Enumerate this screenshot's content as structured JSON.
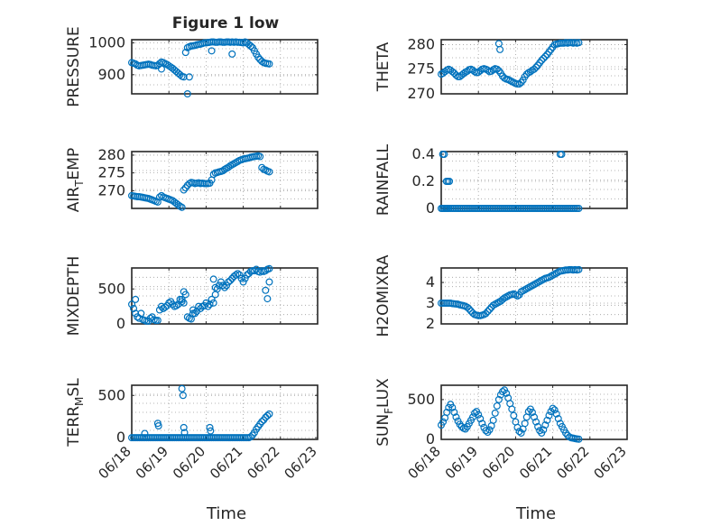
{
  "figure": {
    "title": "Figure 1 low",
    "x_tick_labels": [
      "06/18",
      "06/19",
      "06/20",
      "06/21",
      "06/22",
      "06/23"
    ],
    "x_label": "Time",
    "marker_color": "#0072BD",
    "grid_color": "#9e9e9e"
  },
  "chart_data": [
    {
      "type": "scatter",
      "ylabel": "PRESSURE",
      "xlim": [
        0,
        5
      ],
      "ylim": [
        840,
        1010
      ],
      "yticks": [
        900,
        1000
      ],
      "grid": true,
      "x": [
        0.0,
        0.05,
        0.1,
        0.15,
        0.2,
        0.25,
        0.3,
        0.35,
        0.4,
        0.45,
        0.5,
        0.55,
        0.6,
        0.65,
        0.7,
        0.75,
        0.8,
        0.85,
        0.9,
        0.95,
        1.0,
        1.05,
        1.1,
        1.15,
        1.2,
        1.25,
        1.3,
        1.35,
        1.4,
        1.45,
        1.5,
        1.55,
        1.6,
        1.65,
        1.7,
        1.75,
        1.8,
        1.85,
        1.9,
        1.95,
        2.0,
        2.05,
        2.1,
        2.15,
        2.2,
        2.25,
        2.3,
        2.35,
        2.4,
        2.45,
        2.5,
        2.55,
        2.6,
        2.65,
        2.7,
        2.75,
        2.8,
        2.85,
        2.9,
        2.95,
        3.0,
        3.05,
        3.1,
        3.15,
        3.2,
        3.25,
        3.3,
        3.35,
        3.4,
        3.45,
        3.5,
        3.55,
        3.6,
        3.65,
        3.7,
        1.5,
        1.55,
        2.15,
        2.7,
        3.2,
        0.8
      ],
      "y": [
        938,
        936,
        934,
        930,
        928,
        929,
        930,
        931,
        932,
        933,
        932,
        930,
        929,
        928,
        930,
        935,
        940,
        938,
        935,
        932,
        928,
        924,
        920,
        915,
        910,
        905,
        900,
        895,
        893,
        970,
        985,
        988,
        990,
        991,
        992,
        994,
        995,
        996,
        998,
        1000,
        1000,
        1001,
        1002,
        1003,
        1003,
        1002,
        1002,
        1003,
        1003,
        1002,
        1002,
        1003,
        1003,
        1002,
        1003,
        1002,
        1003,
        1002,
        1002,
        1001,
        1000,
        1003,
        1000,
        995,
        990,
        985,
        975,
        965,
        955,
        948,
        942,
        938,
        936,
        935,
        934,
        840,
        893,
        975,
        965,
        990,
        918
      ]
    },
    {
      "type": "scatter",
      "ylabel": "THETA",
      "xlim": [
        0,
        5
      ],
      "ylim": [
        270,
        281
      ],
      "yticks": [
        270,
        275,
        280
      ],
      "grid": true,
      "x": [
        0.0,
        0.05,
        0.1,
        0.15,
        0.2,
        0.25,
        0.3,
        0.35,
        0.4,
        0.45,
        0.5,
        0.55,
        0.6,
        0.65,
        0.7,
        0.75,
        0.8,
        0.85,
        0.9,
        0.95,
        1.0,
        1.05,
        1.1,
        1.15,
        1.2,
        1.25,
        1.3,
        1.35,
        1.4,
        1.45,
        1.5,
        1.55,
        1.6,
        1.65,
        1.7,
        1.75,
        1.8,
        1.85,
        1.9,
        1.95,
        2.0,
        2.05,
        2.1,
        2.15,
        2.2,
        2.25,
        2.3,
        2.35,
        2.4,
        2.45,
        2.5,
        2.55,
        2.6,
        2.65,
        2.7,
        2.75,
        2.8,
        2.85,
        2.9,
        2.95,
        3.0,
        3.05,
        3.1,
        3.15,
        3.2,
        3.25,
        3.3,
        3.35,
        3.4,
        3.45,
        3.5,
        3.55,
        3.6,
        3.65,
        3.7,
        1.55,
        1.58
      ],
      "y": [
        274.0,
        274.2,
        274.5,
        274.8,
        275.0,
        274.8,
        274.5,
        274.2,
        273.8,
        273.5,
        273.5,
        273.8,
        274.1,
        274.4,
        274.6,
        274.9,
        275.0,
        274.8,
        274.5,
        274.3,
        274.4,
        274.7,
        275.0,
        275.1,
        275.0,
        274.8,
        274.5,
        274.6,
        274.9,
        275.1,
        275.0,
        274.7,
        274.2,
        273.6,
        273.2,
        273.0,
        272.9,
        272.7,
        272.5,
        272.3,
        272.1,
        272.0,
        272.0,
        272.3,
        272.8,
        273.5,
        274.0,
        274.3,
        274.5,
        274.8,
        275.0,
        275.4,
        275.8,
        276.3,
        276.8,
        277.2,
        277.6,
        278.0,
        278.5,
        279.0,
        279.5,
        280.0,
        280.1,
        280.2,
        280.3,
        280.3,
        280.3,
        280.4,
        280.3,
        280.4,
        280.4,
        280.3,
        280.4,
        280.3,
        280.4,
        280.2,
        279.0
      ]
    },
    {
      "type": "scatter",
      "ylabel": "AIR_TEMP",
      "xlim": [
        0,
        5
      ],
      "ylim": [
        265,
        281
      ],
      "yticks": [
        270,
        275,
        280
      ],
      "grid": true,
      "x": [
        0.0,
        0.05,
        0.1,
        0.15,
        0.2,
        0.25,
        0.3,
        0.35,
        0.4,
        0.45,
        0.5,
        0.55,
        0.6,
        0.65,
        0.7,
        0.75,
        0.8,
        0.85,
        0.9,
        0.95,
        1.0,
        1.05,
        1.1,
        1.15,
        1.2,
        1.25,
        1.3,
        1.35,
        1.4,
        1.45,
        1.5,
        1.55,
        1.6,
        1.65,
        1.7,
        1.75,
        1.8,
        1.85,
        1.9,
        1.95,
        2.0,
        2.05,
        2.1,
        2.15,
        2.2,
        2.25,
        2.3,
        2.35,
        2.4,
        2.45,
        2.5,
        2.55,
        2.6,
        2.65,
        2.7,
        2.75,
        2.8,
        2.85,
        2.9,
        2.95,
        3.0,
        3.05,
        3.1,
        3.15,
        3.2,
        3.25,
        3.3,
        3.35,
        3.4,
        3.45,
        3.5,
        3.55,
        3.6,
        3.65,
        3.7
      ],
      "y": [
        268.6,
        268.5,
        268.4,
        268.3,
        268.3,
        268.2,
        268.1,
        268.0,
        267.9,
        267.8,
        267.6,
        267.4,
        267.2,
        267.0,
        266.8,
        268.2,
        268.6,
        268.2,
        268.0,
        267.8,
        267.6,
        267.4,
        267.2,
        266.8,
        266.4,
        266.0,
        265.6,
        265.3,
        270.2,
        270.8,
        271.5,
        272.0,
        272.3,
        272.2,
        272.0,
        272.1,
        272.2,
        272.0,
        272.1,
        272.0,
        272.0,
        272.0,
        272.1,
        273.0,
        274.6,
        275.0,
        275.1,
        275.3,
        275.4,
        275.6,
        276.0,
        276.3,
        276.6,
        277.0,
        277.3,
        277.6,
        277.9,
        278.2,
        278.5,
        278.7,
        278.9,
        279.0,
        279.1,
        279.2,
        279.4,
        279.5,
        279.6,
        279.7,
        279.8,
        279.6,
        276.5,
        276.0,
        275.8,
        275.5,
        275.3
      ]
    },
    {
      "type": "scatter",
      "ylabel": "RAINFALL",
      "xlim": [
        0,
        5
      ],
      "ylim": [
        0,
        0.42
      ],
      "yticks": [
        0,
        0.2,
        0.4
      ],
      "grid": true,
      "x": [
        0.0,
        0.04,
        0.08,
        0.12,
        0.16,
        0.2,
        0.25,
        0.3,
        0.35,
        0.4,
        0.45,
        0.5,
        0.55,
        0.6,
        0.65,
        0.7,
        0.75,
        0.8,
        0.85,
        0.9,
        0.95,
        1.0,
        1.05,
        1.1,
        1.15,
        1.2,
        1.25,
        1.3,
        1.35,
        1.4,
        1.45,
        1.5,
        1.55,
        1.6,
        1.65,
        1.7,
        1.75,
        1.8,
        1.85,
        1.9,
        1.95,
        2.0,
        2.05,
        2.1,
        2.15,
        2.2,
        2.25,
        2.3,
        2.35,
        2.4,
        2.45,
        2.5,
        2.55,
        2.6,
        2.65,
        2.7,
        2.75,
        2.8,
        2.85,
        2.9,
        2.95,
        3.0,
        3.05,
        3.1,
        3.15,
        3.2,
        3.25,
        3.3,
        3.35,
        3.4,
        3.45,
        3.5,
        3.55,
        3.6,
        3.65,
        3.7,
        0.04,
        0.08,
        0.14,
        0.18,
        0.22,
        3.2,
        3.24
      ],
      "y": [
        0,
        0,
        0,
        0,
        0,
        0,
        0,
        0,
        0,
        0,
        0,
        0,
        0,
        0,
        0,
        0,
        0,
        0,
        0,
        0,
        0,
        0,
        0,
        0,
        0,
        0,
        0,
        0,
        0,
        0,
        0,
        0,
        0,
        0,
        0,
        0,
        0,
        0,
        0,
        0,
        0,
        0,
        0,
        0,
        0,
        0,
        0,
        0,
        0,
        0,
        0,
        0,
        0,
        0,
        0,
        0,
        0,
        0,
        0,
        0,
        0,
        0,
        0,
        0,
        0,
        0,
        0,
        0,
        0,
        0,
        0,
        0,
        0,
        0,
        0,
        0,
        0.4,
        0.4,
        0.2,
        0.2,
        0.2,
        0.4,
        0.4
      ]
    },
    {
      "type": "scatter",
      "ylabel": "MIXDEPTH",
      "xlim": [
        0,
        5
      ],
      "ylim": [
        0,
        800
      ],
      "yticks": [
        0,
        500
      ],
      "grid": true,
      "x": [
        0.0,
        0.05,
        0.1,
        0.15,
        0.2,
        0.25,
        0.3,
        0.35,
        0.4,
        0.45,
        0.5,
        0.55,
        0.6,
        0.65,
        0.7,
        0.75,
        0.8,
        0.85,
        0.9,
        0.95,
        1.0,
        1.05,
        1.1,
        1.15,
        1.2,
        1.25,
        1.3,
        1.35,
        1.4,
        1.45,
        1.5,
        1.55,
        1.6,
        1.65,
        1.7,
        1.75,
        1.8,
        1.85,
        1.9,
        1.95,
        2.0,
        2.05,
        2.1,
        2.15,
        2.2,
        2.25,
        2.3,
        2.35,
        2.4,
        2.45,
        2.5,
        2.55,
        2.6,
        2.65,
        2.7,
        2.75,
        2.8,
        2.85,
        2.9,
        2.95,
        3.0,
        3.05,
        3.1,
        3.15,
        3.2,
        3.25,
        3.3,
        3.35,
        3.4,
        3.45,
        3.5,
        3.55,
        3.6,
        3.65,
        3.7,
        1.35,
        1.4,
        2.2,
        2.25,
        3.6,
        3.65,
        3.7,
        0.1,
        1.65
      ],
      "y": [
        280,
        220,
        150,
        100,
        80,
        150,
        60,
        50,
        40,
        40,
        80,
        100,
        60,
        50,
        50,
        200,
        250,
        220,
        240,
        260,
        300,
        320,
        280,
        250,
        260,
        280,
        350,
        320,
        300,
        420,
        100,
        80,
        70,
        200,
        150,
        180,
        250,
        220,
        250,
        260,
        300,
        250,
        280,
        350,
        300,
        420,
        500,
        550,
        600,
        550,
        520,
        550,
        600,
        620,
        650,
        680,
        700,
        720,
        700,
        650,
        600,
        650,
        700,
        720,
        750,
        760,
        760,
        780,
        750,
        740,
        760,
        750,
        760,
        780,
        790,
        350,
        460,
        640,
        520,
        480,
        360,
        600,
        350,
        150
      ]
    },
    {
      "type": "scatter",
      "ylabel": "H2OMIXRA",
      "xlim": [
        0,
        5
      ],
      "ylim": [
        2,
        4.7
      ],
      "yticks": [
        2,
        3,
        4
      ],
      "grid": true,
      "x": [
        0.0,
        0.05,
        0.1,
        0.15,
        0.2,
        0.25,
        0.3,
        0.35,
        0.4,
        0.45,
        0.5,
        0.55,
        0.6,
        0.65,
        0.7,
        0.75,
        0.8,
        0.85,
        0.9,
        0.95,
        1.0,
        1.05,
        1.1,
        1.15,
        1.2,
        1.25,
        1.3,
        1.35,
        1.4,
        1.45,
        1.5,
        1.55,
        1.6,
        1.65,
        1.7,
        1.75,
        1.8,
        1.85,
        1.9,
        1.95,
        2.0,
        2.05,
        2.1,
        2.15,
        2.2,
        2.25,
        2.3,
        2.35,
        2.4,
        2.45,
        2.5,
        2.55,
        2.6,
        2.65,
        2.7,
        2.75,
        2.8,
        2.85,
        2.9,
        2.95,
        3.0,
        3.05,
        3.1,
        3.15,
        3.2,
        3.25,
        3.3,
        3.35,
        3.4,
        3.45,
        3.5,
        3.55,
        3.6,
        3.65,
        3.7
      ],
      "y": [
        3.0,
        3.0,
        3.0,
        3.0,
        3.0,
        3.0,
        2.98,
        2.97,
        2.96,
        2.95,
        2.92,
        2.9,
        2.88,
        2.85,
        2.8,
        2.72,
        2.62,
        2.52,
        2.45,
        2.42,
        2.4,
        2.4,
        2.42,
        2.45,
        2.5,
        2.6,
        2.7,
        2.8,
        2.9,
        2.95,
        3.0,
        3.05,
        3.1,
        3.18,
        3.25,
        3.3,
        3.35,
        3.4,
        3.42,
        3.45,
        3.4,
        3.35,
        3.4,
        3.55,
        3.6,
        3.65,
        3.7,
        3.75,
        3.8,
        3.85,
        3.9,
        3.95,
        4.0,
        4.05,
        4.1,
        4.15,
        4.2,
        4.22,
        4.25,
        4.3,
        4.35,
        4.4,
        4.45,
        4.5,
        4.55,
        4.56,
        4.58,
        4.6,
        4.6,
        4.62,
        4.62,
        4.6,
        4.62,
        4.6,
        4.62
      ]
    },
    {
      "type": "scatter",
      "ylabel": "TERR_MSL",
      "xlim": [
        0,
        5
      ],
      "ylim": [
        -20,
        620
      ],
      "yticks": [
        0,
        500
      ],
      "grid": true,
      "x": [
        0.0,
        0.05,
        0.1,
        0.15,
        0.2,
        0.25,
        0.3,
        0.35,
        0.4,
        0.45,
        0.5,
        0.55,
        0.6,
        0.65,
        0.7,
        0.75,
        0.8,
        0.85,
        0.9,
        0.95,
        1.0,
        1.05,
        1.1,
        1.15,
        1.2,
        1.25,
        1.3,
        1.35,
        1.4,
        1.45,
        1.5,
        1.55,
        1.6,
        1.65,
        1.7,
        1.75,
        1.8,
        1.85,
        1.9,
        1.95,
        2.0,
        2.05,
        2.1,
        2.15,
        2.2,
        2.25,
        2.3,
        2.35,
        2.4,
        2.45,
        2.5,
        2.55,
        2.6,
        2.65,
        2.7,
        2.75,
        2.8,
        2.85,
        2.9,
        2.95,
        3.0,
        3.05,
        3.1,
        3.15,
        3.2,
        3.25,
        3.3,
        3.35,
        3.4,
        3.45,
        3.5,
        3.55,
        3.6,
        3.65,
        3.7,
        0.35,
        0.7,
        0.72,
        1.35,
        1.38,
        1.4,
        1.42,
        2.1,
        2.12
      ],
      "y": [
        0,
        0,
        0,
        0,
        0,
        0,
        0,
        0,
        0,
        0,
        0,
        0,
        0,
        0,
        0,
        0,
        0,
        0,
        0,
        0,
        0,
        0,
        0,
        0,
        0,
        0,
        0,
        0,
        0,
        0,
        0,
        0,
        0,
        0,
        0,
        0,
        0,
        0,
        0,
        0,
        0,
        0,
        0,
        0,
        0,
        0,
        0,
        0,
        0,
        0,
        0,
        0,
        0,
        0,
        0,
        0,
        0,
        0,
        0,
        0,
        0,
        0,
        0,
        0,
        10,
        30,
        60,
        100,
        130,
        160,
        190,
        210,
        240,
        260,
        280,
        50,
        170,
        140,
        580,
        500,
        120,
        60,
        120,
        80
      ]
    },
    {
      "type": "scatter",
      "ylabel": "SUN_FLUX",
      "xlim": [
        0,
        5
      ],
      "ylim": [
        0,
        680
      ],
      "yticks": [
        0,
        500
      ],
      "grid": true,
      "x": [
        0.0,
        0.05,
        0.1,
        0.15,
        0.2,
        0.25,
        0.3,
        0.35,
        0.4,
        0.45,
        0.5,
        0.55,
        0.6,
        0.65,
        0.7,
        0.75,
        0.8,
        0.85,
        0.9,
        0.95,
        1.0,
        1.05,
        1.1,
        1.15,
        1.2,
        1.25,
        1.3,
        1.35,
        1.4,
        1.45,
        1.5,
        1.55,
        1.6,
        1.65,
        1.7,
        1.75,
        1.8,
        1.85,
        1.9,
        1.95,
        2.0,
        2.05,
        2.1,
        2.15,
        2.2,
        2.25,
        2.3,
        2.35,
        2.4,
        2.45,
        2.5,
        2.55,
        2.6,
        2.65,
        2.7,
        2.75,
        2.8,
        2.85,
        2.9,
        2.95,
        3.0,
        3.05,
        3.1,
        3.15,
        3.2,
        3.25,
        3.3,
        3.35,
        3.4,
        3.45,
        3.5,
        3.55,
        3.6,
        3.65,
        3.7
      ],
      "y": [
        180,
        220,
        270,
        340,
        400,
        440,
        400,
        340,
        280,
        230,
        190,
        160,
        140,
        130,
        160,
        200,
        240,
        280,
        330,
        350,
        310,
        260,
        200,
        150,
        110,
        90,
        120,
        170,
        240,
        330,
        420,
        500,
        560,
        600,
        620,
        580,
        520,
        450,
        380,
        300,
        220,
        150,
        100,
        80,
        130,
        200,
        280,
        350,
        380,
        340,
        280,
        220,
        160,
        110,
        80,
        120,
        180,
        240,
        300,
        350,
        390,
        370,
        320,
        260,
        200,
        160,
        120,
        80,
        50,
        30,
        20,
        15,
        10,
        5,
        3
      ]
    }
  ]
}
